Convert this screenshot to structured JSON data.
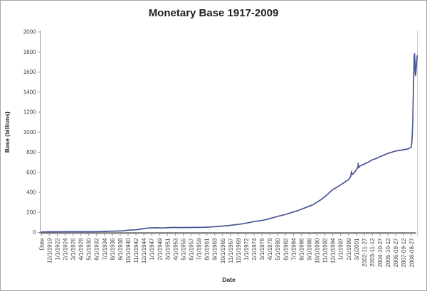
{
  "window": {
    "background": "#ffffff",
    "border_color": "#a6a6a6"
  },
  "chart_data": {
    "type": "line",
    "title": "Monetary Base 1917-2009",
    "xlabel": "Date",
    "ylabel": "Base (billions)",
    "legend": "none",
    "grid": false,
    "ylim": [
      0,
      2000
    ],
    "y_tick_interval": 200,
    "y_tick_labels": [
      "0",
      "200",
      "400",
      "600",
      "800",
      "1000",
      "1200",
      "1400",
      "1600",
      "1800",
      "2000"
    ],
    "x_tick_labels": [
      "Date",
      "12/1/1919",
      "1/1/1922",
      "2/1/1924",
      "3/1/1926",
      "4/1/1928",
      "5/1/1930",
      "6/1/1932",
      "7/1/1934",
      "8/1/1936",
      "9/1/1938",
      "10/1/1940",
      "11/1/1942",
      "12/1/1944",
      "1/1/1947",
      "2/1/1949",
      "3/1/1951",
      "4/1/1953",
      "5/1/1955",
      "6/1/1957",
      "7/1/1959",
      "8/1/1961",
      "9/1/1963",
      "10/1/1965",
      "11/1/1967",
      "12/1/1969",
      "1/1/1972",
      "2/1/1974",
      "3/1/1976",
      "4/1/1978",
      "5/1/1980",
      "6/1/1982",
      "7/1/1984",
      "8/1/1986",
      "9/1/1988",
      "10/1/1990",
      "11/1/1992",
      "12/1/1994",
      "1/1/1997",
      "2/1/1999",
      "3/1/2001",
      "2002-11-27",
      "2003-11-12",
      "2004-10-27",
      "2005-10-12",
      "2006-09-27",
      "2007-09-12",
      "2008-08-27"
    ],
    "colors": {
      "line": "#4A5596",
      "axis": "#808080",
      "tick": "#9a9a9a",
      "label": "#404040",
      "plot_right_border": "#c9c9c9"
    },
    "series": [
      {
        "name": "Base",
        "points_format": [
          "year_decimal",
          "billions"
        ],
        "points": [
          [
            1917.92,
            4.5
          ],
          [
            1918.5,
            5.0
          ],
          [
            1919.92,
            6.4
          ],
          [
            1921.0,
            6.8
          ],
          [
            1922.0,
            6.4
          ],
          [
            1923.0,
            6.7
          ],
          [
            1924.1,
            6.9
          ],
          [
            1925.1,
            7.0
          ],
          [
            1926.2,
            7.1
          ],
          [
            1927.2,
            7.1
          ],
          [
            1928.3,
            7.1
          ],
          [
            1929.3,
            7.0
          ],
          [
            1930.4,
            6.8
          ],
          [
            1931.4,
            7.2
          ],
          [
            1932.5,
            7.8
          ],
          [
            1933.5,
            8.3
          ],
          [
            1934.5,
            9.8
          ],
          [
            1935.6,
            11.0
          ],
          [
            1936.6,
            12.7
          ],
          [
            1937.6,
            13.5
          ],
          [
            1938.7,
            15.0
          ],
          [
            1939.7,
            18.0
          ],
          [
            1940.8,
            22.5
          ],
          [
            1941.8,
            24.5
          ],
          [
            1942.9,
            26.5
          ],
          [
            1943.9,
            32.0
          ],
          [
            1944.92,
            38.0
          ],
          [
            1945.9,
            43.0
          ],
          [
            1947.0,
            45.5
          ],
          [
            1948.0,
            46.5
          ],
          [
            1949.1,
            45.5
          ],
          [
            1950.1,
            44.5
          ],
          [
            1951.2,
            47.0
          ],
          [
            1952.2,
            49.0
          ],
          [
            1953.3,
            50.0
          ],
          [
            1954.3,
            49.0
          ],
          [
            1955.4,
            49.0
          ],
          [
            1956.4,
            49.5
          ],
          [
            1957.5,
            49.5
          ],
          [
            1958.5,
            50.0
          ],
          [
            1959.5,
            50.5
          ],
          [
            1960.6,
            51.0
          ],
          [
            1961.6,
            52.5
          ],
          [
            1962.6,
            54.5
          ],
          [
            1963.7,
            57.0
          ],
          [
            1964.7,
            60.0
          ],
          [
            1965.8,
            63.5
          ],
          [
            1966.8,
            66.5
          ],
          [
            1967.9,
            70.5
          ],
          [
            1968.9,
            75.5
          ],
          [
            1969.92,
            80.0
          ],
          [
            1971.0,
            86.0
          ],
          [
            1972.0,
            93.0
          ],
          [
            1973.0,
            100.0
          ],
          [
            1974.1,
            108.0
          ],
          [
            1975.1,
            113.0
          ],
          [
            1976.2,
            119.0
          ],
          [
            1977.2,
            127.0
          ],
          [
            1978.3,
            138.0
          ],
          [
            1979.3,
            148.0
          ],
          [
            1980.4,
            161.0
          ],
          [
            1981.4,
            169.0
          ],
          [
            1982.5,
            180.0
          ],
          [
            1983.5,
            192.0
          ],
          [
            1984.5,
            203.0
          ],
          [
            1985.6,
            216.0
          ],
          [
            1986.6,
            230.0
          ],
          [
            1987.6,
            245.0
          ],
          [
            1988.7,
            261.0
          ],
          [
            1989.7,
            275.0
          ],
          [
            1990.8,
            302.0
          ],
          [
            1991.8,
            325.0
          ],
          [
            1992.9,
            356.0
          ],
          [
            1993.9,
            390.0
          ],
          [
            1994.92,
            426.0
          ],
          [
            1995.9,
            447.0
          ],
          [
            1997.0,
            472.0
          ],
          [
            1998.0,
            497.0
          ],
          [
            1999.1,
            525.0
          ],
          [
            1999.7,
            555.0
          ],
          [
            1999.95,
            608.0
          ],
          [
            2000.1,
            578.0
          ],
          [
            2000.6,
            592.0
          ],
          [
            2001.2,
            622.0
          ],
          [
            2001.67,
            652.0
          ],
          [
            2001.72,
            690.0
          ],
          [
            2001.8,
            644.0
          ],
          [
            2002.2,
            662.0
          ],
          [
            2002.9,
            681.0
          ],
          [
            2003.4,
            700.0
          ],
          [
            2003.87,
            722.0
          ],
          [
            2004.4,
            738.0
          ],
          [
            2004.82,
            754.0
          ],
          [
            2005.3,
            770.0
          ],
          [
            2005.78,
            787.0
          ],
          [
            2006.3,
            800.0
          ],
          [
            2006.74,
            812.0
          ],
          [
            2007.2,
            818.0
          ],
          [
            2007.7,
            825.0
          ],
          [
            2008.2,
            832.0
          ],
          [
            2008.65,
            849.0
          ],
          [
            2008.7,
            875.0
          ],
          [
            2008.75,
            908.0
          ],
          [
            2008.8,
            990.0
          ],
          [
            2008.85,
            1110.0
          ],
          [
            2008.9,
            1300.0
          ],
          [
            2008.95,
            1480.0
          ],
          [
            2009.0,
            1670.0
          ],
          [
            2009.04,
            1772.0
          ],
          [
            2009.08,
            1781.0
          ],
          [
            2009.12,
            1690.0
          ],
          [
            2009.16,
            1580.0
          ],
          [
            2009.2,
            1565.0
          ],
          [
            2009.25,
            1620.0
          ],
          [
            2009.3,
            1668.0
          ],
          [
            2009.35,
            1720.0
          ],
          [
            2009.4,
            1764.0
          ]
        ]
      }
    ]
  }
}
